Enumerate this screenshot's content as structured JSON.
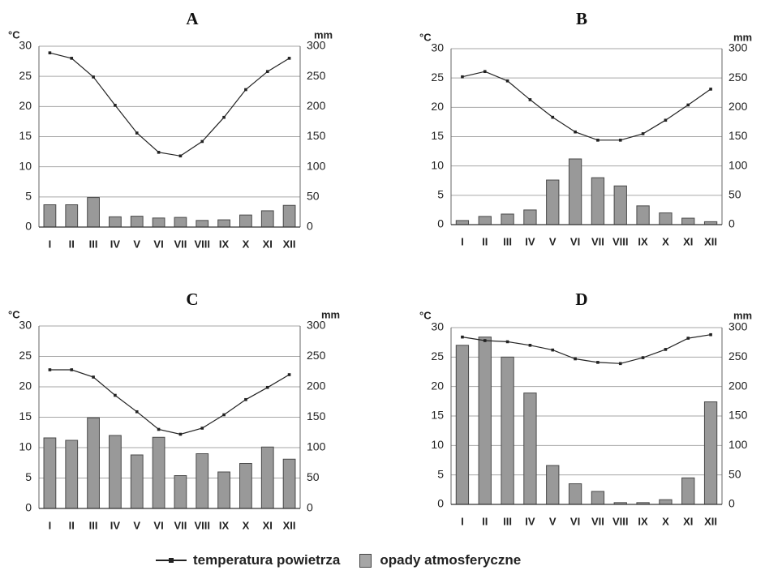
{
  "legend": {
    "placement": "bottom-center",
    "items": [
      {
        "label": "temperatura powietrza",
        "marker": "line-with-square-marker"
      },
      {
        "label": "opady atmosferyczne",
        "marker": "gray-box"
      }
    ]
  },
  "colors": {
    "bar_fill": "#999999",
    "bar_stroke": "#4a4a4a",
    "line": "#222222",
    "grid": "#a6a6a6",
    "axis": "#666666"
  },
  "chart_data": [
    {
      "type": "bar",
      "title": "A",
      "ylabel": "°C",
      "y2label": "mm",
      "categories": [
        "I",
        "II",
        "III",
        "IV",
        "V",
        "VI",
        "VII",
        "VIII",
        "IX",
        "X",
        "XI",
        "XII"
      ],
      "ylim": [
        0,
        30
      ],
      "y2lim": [
        0,
        300
      ],
      "y_ticks": [
        0,
        5,
        10,
        15,
        20,
        25,
        30
      ],
      "y2_ticks": [
        0,
        50,
        100,
        150,
        200,
        250,
        300
      ],
      "grid": true,
      "series": [
        {
          "legend_entry": 0,
          "type": "line",
          "axis": "left",
          "values": [
            28.9,
            28.0,
            24.9,
            20.2,
            15.6,
            12.4,
            11.8,
            14.2,
            18.2,
            22.8,
            25.8,
            28.0
          ]
        },
        {
          "legend_entry": 1,
          "type": "bar",
          "axis": "right",
          "values": [
            37,
            37,
            49,
            17,
            18,
            15,
            16,
            11,
            12,
            20,
            27,
            36
          ]
        }
      ]
    },
    {
      "type": "bar",
      "title": "B",
      "ylabel": "°C",
      "y2label": "mm",
      "categories": [
        "I",
        "II",
        "III",
        "IV",
        "V",
        "VI",
        "VII",
        "VIII",
        "IX",
        "X",
        "XI",
        "XII"
      ],
      "ylim": [
        0,
        30
      ],
      "y2lim": [
        0,
        300
      ],
      "y_ticks": [
        0,
        5,
        10,
        15,
        20,
        25,
        30
      ],
      "y2_ticks": [
        0,
        50,
        100,
        150,
        200,
        250,
        300
      ],
      "grid": true,
      "series": [
        {
          "legend_entry": 0,
          "type": "line",
          "axis": "left",
          "values": [
            25.2,
            26.1,
            24.5,
            21.3,
            18.3,
            15.8,
            14.4,
            14.4,
            15.5,
            17.8,
            20.4,
            23.1
          ]
        },
        {
          "legend_entry": 1,
          "type": "bar",
          "axis": "right",
          "values": [
            7,
            14,
            18,
            25,
            76,
            112,
            80,
            66,
            32,
            20,
            11,
            5
          ]
        }
      ]
    },
    {
      "type": "bar",
      "title": "C",
      "ylabel": "°C",
      "y2label": "mm",
      "categories": [
        "I",
        "II",
        "III",
        "IV",
        "V",
        "VI",
        "VII",
        "VIII",
        "IX",
        "X",
        "XI",
        "XII"
      ],
      "ylim": [
        0,
        30
      ],
      "y2lim": [
        0,
        300
      ],
      "y_ticks": [
        0,
        5,
        10,
        15,
        20,
        25,
        30
      ],
      "y2_ticks": [
        0,
        50,
        100,
        150,
        200,
        250,
        300
      ],
      "grid": true,
      "series": [
        {
          "legend_entry": 0,
          "type": "line",
          "axis": "left",
          "values": [
            22.8,
            22.8,
            21.6,
            18.6,
            15.9,
            13.0,
            12.2,
            13.2,
            15.4,
            17.9,
            19.9,
            22.0
          ]
        },
        {
          "legend_entry": 1,
          "type": "bar",
          "axis": "right",
          "values": [
            116,
            112,
            149,
            120,
            88,
            117,
            54,
            90,
            60,
            74,
            101,
            81
          ]
        }
      ]
    },
    {
      "type": "bar",
      "title": "D",
      "ylabel": "°C",
      "y2label": "mm",
      "categories": [
        "I",
        "II",
        "III",
        "IV",
        "V",
        "VI",
        "VII",
        "VIII",
        "IX",
        "X",
        "XI",
        "XII"
      ],
      "ylim": [
        0,
        30
      ],
      "y2lim": [
        0,
        300
      ],
      "y_ticks": [
        0,
        5,
        10,
        15,
        20,
        25,
        30
      ],
      "y2_ticks": [
        0,
        50,
        100,
        150,
        200,
        250,
        300
      ],
      "grid": true,
      "series": [
        {
          "legend_entry": 0,
          "type": "line",
          "axis": "left",
          "values": [
            28.4,
            27.8,
            27.6,
            27.0,
            26.2,
            24.7,
            24.1,
            23.9,
            24.9,
            26.3,
            28.2,
            28.8
          ]
        },
        {
          "legend_entry": 1,
          "type": "bar",
          "axis": "right",
          "values": [
            270,
            284,
            250,
            189,
            66,
            35,
            22,
            3,
            3,
            8,
            45,
            174
          ]
        }
      ]
    }
  ]
}
